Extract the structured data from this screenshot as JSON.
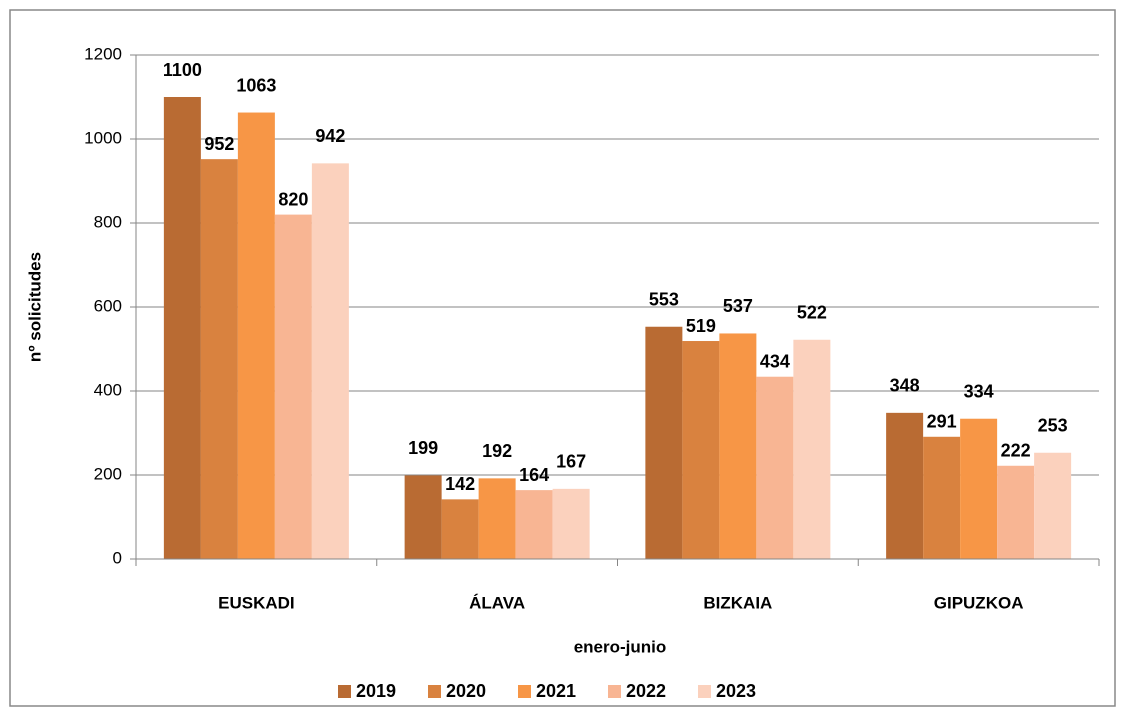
{
  "chart_data": {
    "type": "bar",
    "y_label": "nº solicitudes",
    "x_label": "enero-junio",
    "categories": [
      "EUSKADI",
      "ÁLAVA",
      "BIZKAIA",
      "GIPUZKOA"
    ],
    "series": [
      {
        "name": "2019",
        "color": "#b96b33",
        "values": [
          1100,
          199,
          553,
          348
        ]
      },
      {
        "name": "2020",
        "color": "#d9823f",
        "values": [
          952,
          142,
          519,
          291
        ]
      },
      {
        "name": "2021",
        "color": "#f79646",
        "values": [
          1063,
          192,
          537,
          334
        ]
      },
      {
        "name": "2022",
        "color": "#f8b593",
        "values": [
          820,
          164,
          434,
          222
        ]
      },
      {
        "name": "2023",
        "color": "#fbd1bd",
        "values": [
          942,
          167,
          522,
          253
        ]
      }
    ],
    "ylim": [
      0,
      1200
    ],
    "yticks": [
      0,
      200,
      400,
      600,
      800,
      1000,
      1200
    ],
    "grid": true,
    "legend": "bottom"
  }
}
